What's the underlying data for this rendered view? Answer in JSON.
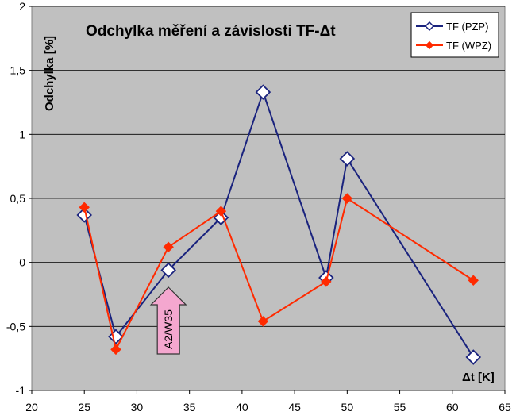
{
  "chart_data": {
    "type": "line",
    "title": "Odchylka měření a závislosti TF-Δt",
    "ylabel": "Odchylka [%]",
    "xlabel": "Δt [K]",
    "xlim": [
      20,
      65
    ],
    "ylim": [
      -1,
      2
    ],
    "x_ticks": [
      "20",
      "25",
      "30",
      "35",
      "40",
      "45",
      "50",
      "55",
      "60",
      "65"
    ],
    "y_ticks": [
      "2",
      "1,5",
      "1",
      "0,5",
      "0",
      "-0,5",
      "-1"
    ],
    "grid": true,
    "legend_position": "top-right",
    "series": [
      {
        "name": "TF (PZP)",
        "color": "#1a237e",
        "marker": "open-diamond",
        "x": [
          25,
          28,
          33,
          38,
          42,
          48,
          50,
          62
        ],
        "y": [
          0.37,
          -0.58,
          -0.06,
          0.35,
          1.33,
          -0.12,
          0.81,
          -0.74
        ]
      },
      {
        "name": "TF (WPZ)",
        "color": "#ff2a00",
        "marker": "filled-diamond",
        "x": [
          25,
          28,
          33,
          38,
          42,
          48,
          50,
          62
        ],
        "y": [
          0.43,
          -0.68,
          0.12,
          0.4,
          -0.46,
          -0.15,
          0.5,
          -0.14
        ]
      }
    ],
    "annotations": [
      {
        "text": "A2/W35",
        "shape": "up-arrow",
        "x": 33,
        "color": "#f4a7cf"
      }
    ],
    "plot_background": "#c0c0c0"
  }
}
